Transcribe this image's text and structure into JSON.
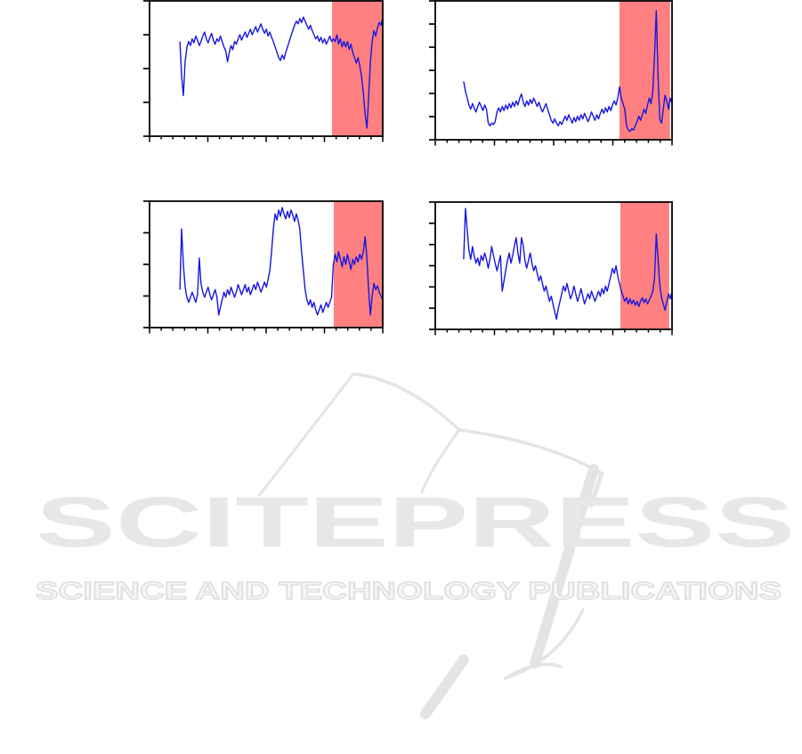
{
  "page": {
    "background": "#ffffff"
  },
  "watermark": {
    "title": "SCITEPRESS",
    "subtitle": "SCIENCE AND TECHNOLOGY PUBLICATIONS",
    "color": "#e7e7e7"
  },
  "chart_data": [
    {
      "id": "subplot-top-left",
      "type": "line",
      "title": "",
      "xlabel": "",
      "ylabel": "",
      "x_range": [
        0,
        1
      ],
      "y_range": [
        0,
        1
      ],
      "x_tick_labels": [],
      "y_tick_labels": [],
      "grid": false,
      "legend": "none",
      "line_color": "#1616e0",
      "axis_color": "#000000",
      "shaded_region": {
        "x_start": 0.782,
        "x_end": 1.0,
        "color": "#ff8080"
      },
      "axis": {
        "y_tick_count": 5,
        "x_tick_count": 21,
        "x_major_every": 5
      },
      "x_start": 0.13,
      "values": [
        0.7,
        0.45,
        0.3,
        0.55,
        0.66,
        0.7,
        0.67,
        0.72,
        0.69,
        0.74,
        0.71,
        0.67,
        0.7,
        0.74,
        0.77,
        0.72,
        0.69,
        0.73,
        0.76,
        0.71,
        0.68,
        0.72,
        0.7,
        0.74,
        0.7,
        0.66,
        0.63,
        0.55,
        0.62,
        0.67,
        0.64,
        0.7,
        0.68,
        0.72,
        0.75,
        0.71,
        0.74,
        0.77,
        0.73,
        0.76,
        0.79,
        0.75,
        0.78,
        0.81,
        0.77,
        0.8,
        0.83,
        0.79,
        0.76,
        0.79,
        0.74,
        0.77,
        0.73,
        0.7,
        0.66,
        0.62,
        0.58,
        0.56,
        0.6,
        0.57,
        0.62,
        0.66,
        0.7,
        0.74,
        0.78,
        0.82,
        0.85,
        0.83,
        0.87,
        0.84,
        0.88,
        0.85,
        0.82,
        0.79,
        0.82,
        0.78,
        0.75,
        0.72,
        0.74,
        0.7,
        0.73,
        0.69,
        0.72,
        0.68,
        0.71,
        0.74,
        0.7,
        0.72,
        0.7,
        0.75,
        0.68,
        0.72,
        0.66,
        0.7,
        0.66,
        0.7,
        0.64,
        0.68,
        0.62,
        0.58,
        0.54,
        0.58,
        0.52,
        0.44,
        0.32,
        0.16,
        0.06,
        0.28,
        0.55,
        0.7,
        0.78,
        0.74,
        0.8,
        0.84,
        0.82,
        0.88
      ]
    },
    {
      "id": "subplot-top-right",
      "type": "line",
      "title": "",
      "xlabel": "",
      "ylabel": "",
      "x_range": [
        0,
        1
      ],
      "y_range": [
        0,
        1
      ],
      "x_tick_labels": [],
      "y_tick_labels": [],
      "grid": false,
      "legend": "none",
      "line_color": "#1616e0",
      "axis_color": "#000000",
      "shaded_region": {
        "x_start": 0.778,
        "x_end": 0.992,
        "color": "#ff8080"
      },
      "axis": {
        "y_tick_count": 7,
        "x_tick_count": 21,
        "x_major_every": 5
      },
      "x_start": 0.12,
      "values": [
        0.42,
        0.35,
        0.3,
        0.25,
        0.22,
        0.26,
        0.23,
        0.2,
        0.24,
        0.27,
        0.24,
        0.21,
        0.25,
        0.22,
        0.12,
        0.1,
        0.12,
        0.11,
        0.13,
        0.2,
        0.23,
        0.2,
        0.24,
        0.21,
        0.25,
        0.22,
        0.26,
        0.23,
        0.27,
        0.24,
        0.28,
        0.25,
        0.3,
        0.33,
        0.27,
        0.24,
        0.28,
        0.25,
        0.29,
        0.26,
        0.3,
        0.27,
        0.24,
        0.27,
        0.23,
        0.2,
        0.23,
        0.26,
        0.22,
        0.18,
        0.14,
        0.12,
        0.15,
        0.12,
        0.1,
        0.13,
        0.11,
        0.14,
        0.17,
        0.14,
        0.18,
        0.15,
        0.12,
        0.16,
        0.13,
        0.17,
        0.14,
        0.18,
        0.15,
        0.19,
        0.16,
        0.13,
        0.16,
        0.2,
        0.17,
        0.14,
        0.18,
        0.15,
        0.19,
        0.22,
        0.19,
        0.23,
        0.2,
        0.24,
        0.21,
        0.25,
        0.28,
        0.25,
        0.3,
        0.38,
        0.3,
        0.26,
        0.22,
        0.1,
        0.07,
        0.06,
        0.08,
        0.07,
        0.1,
        0.13,
        0.17,
        0.14,
        0.18,
        0.22,
        0.19,
        0.25,
        0.3,
        0.26,
        0.35,
        0.6,
        0.93,
        0.45,
        0.15,
        0.12,
        0.22,
        0.32,
        0.28,
        0.22,
        0.3,
        0.26
      ]
    },
    {
      "id": "subplot-bottom-left",
      "type": "line",
      "title": "",
      "xlabel": "",
      "ylabel": "",
      "x_range": [
        0,
        1
      ],
      "y_range": [
        0,
        1
      ],
      "x_tick_labels": [],
      "y_tick_labels": [],
      "grid": false,
      "legend": "none",
      "line_color": "#1616e0",
      "axis_color": "#000000",
      "shaded_region": {
        "x_start": 0.79,
        "x_end": 1.0,
        "color": "#ff8080"
      },
      "axis": {
        "y_tick_count": 5,
        "x_tick_count": 21,
        "x_major_every": 5
      },
      "x_start": 0.13,
      "values": [
        0.3,
        0.78,
        0.5,
        0.32,
        0.24,
        0.2,
        0.24,
        0.28,
        0.24,
        0.2,
        0.26,
        0.55,
        0.35,
        0.28,
        0.24,
        0.28,
        0.32,
        0.26,
        0.22,
        0.26,
        0.3,
        0.24,
        0.1,
        0.16,
        0.22,
        0.28,
        0.24,
        0.3,
        0.26,
        0.32,
        0.28,
        0.24,
        0.28,
        0.34,
        0.3,
        0.26,
        0.3,
        0.34,
        0.28,
        0.32,
        0.26,
        0.3,
        0.34,
        0.3,
        0.36,
        0.32,
        0.28,
        0.32,
        0.36,
        0.32,
        0.38,
        0.45,
        0.6,
        0.78,
        0.9,
        0.85,
        0.93,
        0.88,
        0.95,
        0.9,
        0.86,
        0.92,
        0.87,
        0.93,
        0.89,
        0.84,
        0.9,
        0.85,
        0.78,
        0.6,
        0.45,
        0.3,
        0.22,
        0.18,
        0.22,
        0.16,
        0.2,
        0.14,
        0.1,
        0.14,
        0.18,
        0.12,
        0.16,
        0.2,
        0.16,
        0.2,
        0.24,
        0.5,
        0.58,
        0.52,
        0.6,
        0.54,
        0.48,
        0.56,
        0.5,
        0.58,
        0.52,
        0.46,
        0.54,
        0.5,
        0.56,
        0.52,
        0.58,
        0.54,
        0.6,
        0.72,
        0.55,
        0.3,
        0.1,
        0.25,
        0.35,
        0.3,
        0.33,
        0.28,
        0.25,
        0.22
      ]
    },
    {
      "id": "subplot-bottom-right",
      "type": "line",
      "title": "",
      "xlabel": "",
      "ylabel": "",
      "x_range": [
        0,
        1
      ],
      "y_range": [
        0,
        1
      ],
      "x_tick_labels": [],
      "y_tick_labels": [],
      "grid": false,
      "legend": "none",
      "line_color": "#1616e0",
      "axis_color": "#000000",
      "shaded_region": {
        "x_start": 0.782,
        "x_end": 0.988,
        "color": "#ff8080"
      },
      "axis": {
        "y_tick_count": 7,
        "x_tick_count": 21,
        "x_major_every": 5
      },
      "x_start": 0.12,
      "values": [
        0.55,
        0.95,
        0.78,
        0.62,
        0.55,
        0.65,
        0.58,
        0.52,
        0.56,
        0.5,
        0.58,
        0.54,
        0.6,
        0.55,
        0.48,
        0.55,
        0.65,
        0.58,
        0.52,
        0.46,
        0.52,
        0.58,
        0.3,
        0.38,
        0.46,
        0.54,
        0.6,
        0.52,
        0.58,
        0.66,
        0.72,
        0.6,
        0.52,
        0.72,
        0.66,
        0.54,
        0.48,
        0.54,
        0.6,
        0.52,
        0.46,
        0.5,
        0.44,
        0.38,
        0.42,
        0.36,
        0.3,
        0.34,
        0.28,
        0.22,
        0.26,
        0.2,
        0.14,
        0.08,
        0.16,
        0.22,
        0.28,
        0.34,
        0.3,
        0.36,
        0.3,
        0.24,
        0.28,
        0.34,
        0.28,
        0.22,
        0.26,
        0.32,
        0.26,
        0.2,
        0.24,
        0.28,
        0.24,
        0.3,
        0.26,
        0.22,
        0.26,
        0.3,
        0.26,
        0.32,
        0.28,
        0.34,
        0.3,
        0.36,
        0.42,
        0.48,
        0.44,
        0.5,
        0.42,
        0.36,
        0.3,
        0.26,
        0.22,
        0.25,
        0.2,
        0.24,
        0.2,
        0.23,
        0.19,
        0.22,
        0.18,
        0.22,
        0.25,
        0.21,
        0.24,
        0.2,
        0.23,
        0.26,
        0.3,
        0.4,
        0.75,
        0.55,
        0.35,
        0.25,
        0.2,
        0.15,
        0.22,
        0.28,
        0.24,
        0.3
      ]
    }
  ]
}
